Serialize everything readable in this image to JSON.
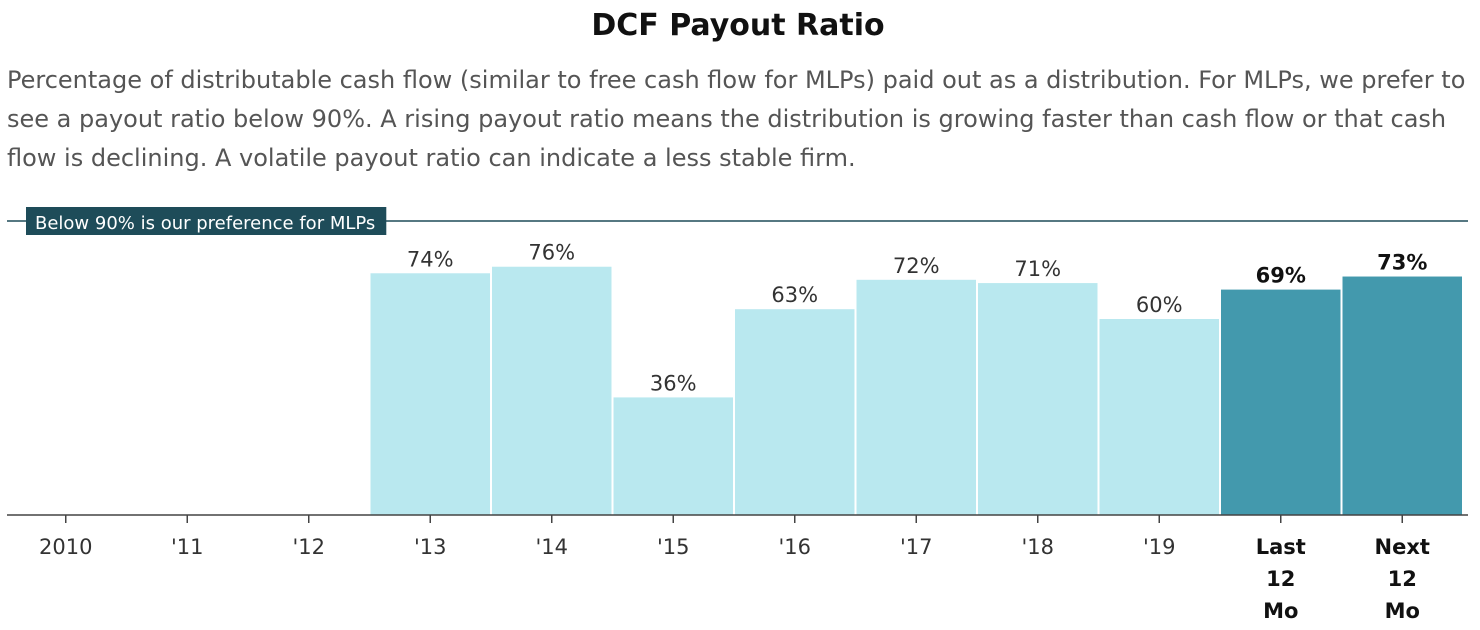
{
  "header": {
    "title": "DCF Payout Ratio",
    "description": "Percentage of distributable cash flow (similar to free cash flow for MLPs) paid out as a distribution. For MLPs, we prefer to see a payout ratio below 90%. A rising payout ratio means the distribution is growing faster than cash flow or that cash flow is declining. A volatile payout ratio can indicate a less stable firm."
  },
  "colors": {
    "historical_bar": "#b9e8ef",
    "forecast_bar": "#4399ad",
    "reference_line": "#1e4c59",
    "axis": "#444444",
    "label_text": "#333333",
    "forecast_label_text": "#111111"
  },
  "chart_data": {
    "type": "bar",
    "categories": [
      "2010",
      "'11",
      "'12",
      "'13",
      "'14",
      "'15",
      "'16",
      "'17",
      "'18",
      "'19",
      "Last 12 Mo",
      "Next 12 Mo"
    ],
    "category_lines": [
      [
        "2010"
      ],
      [
        "'11"
      ],
      [
        "'12"
      ],
      [
        "'13"
      ],
      [
        "'14"
      ],
      [
        "'15"
      ],
      [
        "'16"
      ],
      [
        "'17"
      ],
      [
        "'18"
      ],
      [
        "'19"
      ],
      [
        "Last",
        "12",
        "Mo"
      ],
      [
        "Next",
        "12",
        "Mo"
      ]
    ],
    "values": [
      null,
      null,
      null,
      74,
      76,
      36,
      63,
      72,
      71,
      60,
      69,
      73
    ],
    "value_labels": [
      "",
      "",
      "",
      "74%",
      "76%",
      "36%",
      "63%",
      "72%",
      "71%",
      "60%",
      "69%",
      "73%"
    ],
    "highlighted": [
      false,
      false,
      false,
      false,
      false,
      false,
      false,
      false,
      false,
      false,
      true,
      true
    ],
    "reference_line": {
      "value": 90,
      "label": "Below 90% is our preference for MLPs"
    },
    "ylim": [
      0,
      90
    ],
    "xlabel": "",
    "ylabel": "",
    "grid": false,
    "legend": "none"
  }
}
